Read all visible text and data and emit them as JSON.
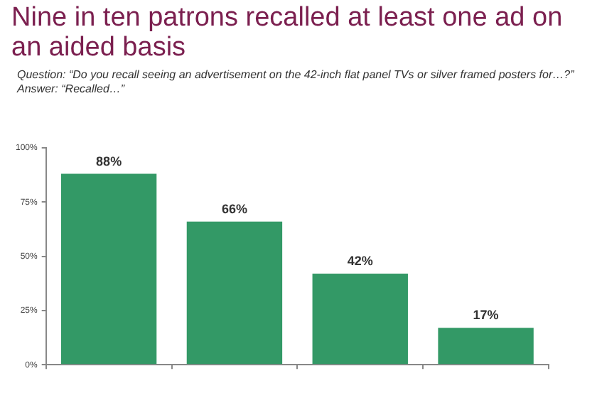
{
  "chart_data": {
    "type": "bar",
    "title": "Nine in ten patrons recalled at least one ad on an aided basis",
    "subtitle": "Question: “Do you recall seeing an advertisement on the 42-inch flat panel TVs or silver framed posters for…?”",
    "annotations": [
      "Answer: “Recalled…”"
    ],
    "categories": [
      null,
      null,
      null,
      null
    ],
    "values": [
      88,
      66,
      42,
      17
    ],
    "value_labels": [
      "88%",
      "66%",
      "42%",
      "17%"
    ],
    "color": "#339966",
    "ylim": [
      0,
      100
    ],
    "yticks": [
      {
        "value": 0,
        "label": "0%"
      },
      {
        "value": 25,
        "label": "25%"
      },
      {
        "value": 50,
        "label": "50%"
      },
      {
        "value": 75,
        "label": "75%"
      },
      {
        "value": 100,
        "label": "100%"
      }
    ],
    "grid": false,
    "legend": false
  }
}
